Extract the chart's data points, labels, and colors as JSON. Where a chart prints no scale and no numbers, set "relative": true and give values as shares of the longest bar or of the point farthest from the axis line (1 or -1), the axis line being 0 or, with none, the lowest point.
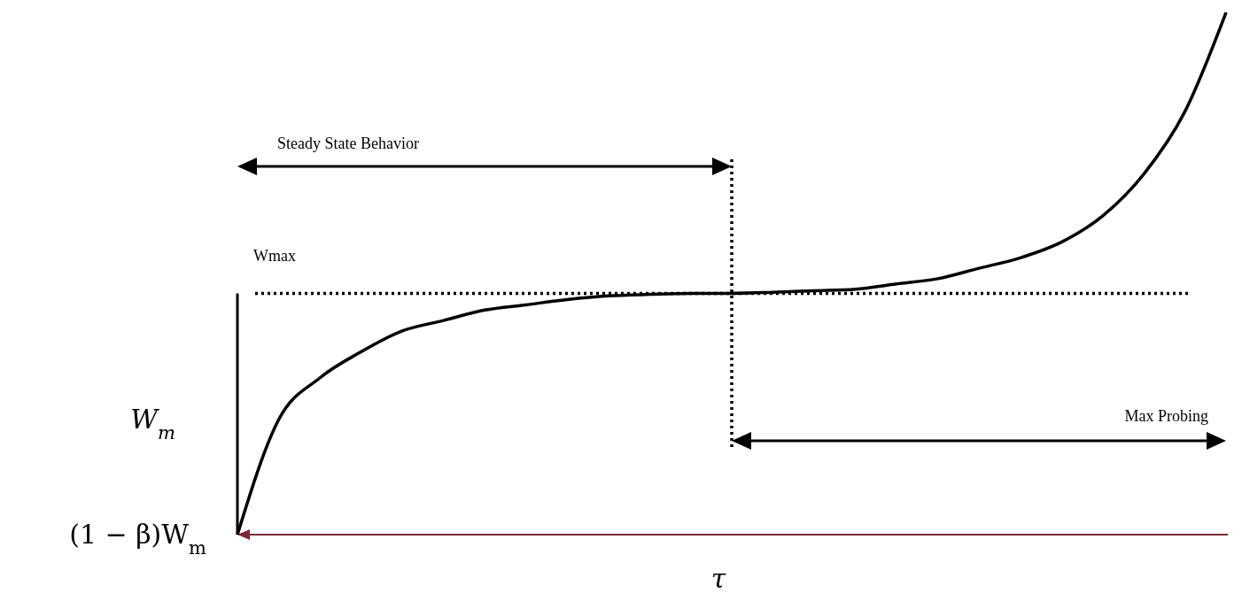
{
  "chart_data": {
    "type": "line",
    "relative": true,
    "xlabel": "τ",
    "categories": [
      null,
      null,
      null,
      null,
      null,
      null,
      null,
      null,
      null,
      null,
      null,
      null,
      null,
      null,
      null,
      null,
      null,
      null,
      null,
      null,
      null,
      null,
      null,
      null,
      null
    ],
    "series": [
      {
        "color": "#000000",
        "values": [
          0,
          0.22,
          0.3,
          0.35,
          0.39,
          0.41,
          0.43,
          0.44,
          0.45,
          0.457,
          0.46,
          0.462,
          0.462,
          0.464,
          0.467,
          0.47,
          0.48,
          0.49,
          0.51,
          0.53,
          0.56,
          0.61,
          0.69,
          0.81,
          1.0
        ]
      }
    ],
    "ref_lines": [
      {
        "axis": "y",
        "value": 0.462,
        "label": "Wmax",
        "line_style": "dotted",
        "color": "#000000"
      }
    ],
    "annotations": [
      "Steady State Behavior",
      "Max Probing",
      "W$_{m}$",
      "(1 − β)W$_{m}$"
    ],
    "marker": "none",
    "line_style": "solid"
  }
}
